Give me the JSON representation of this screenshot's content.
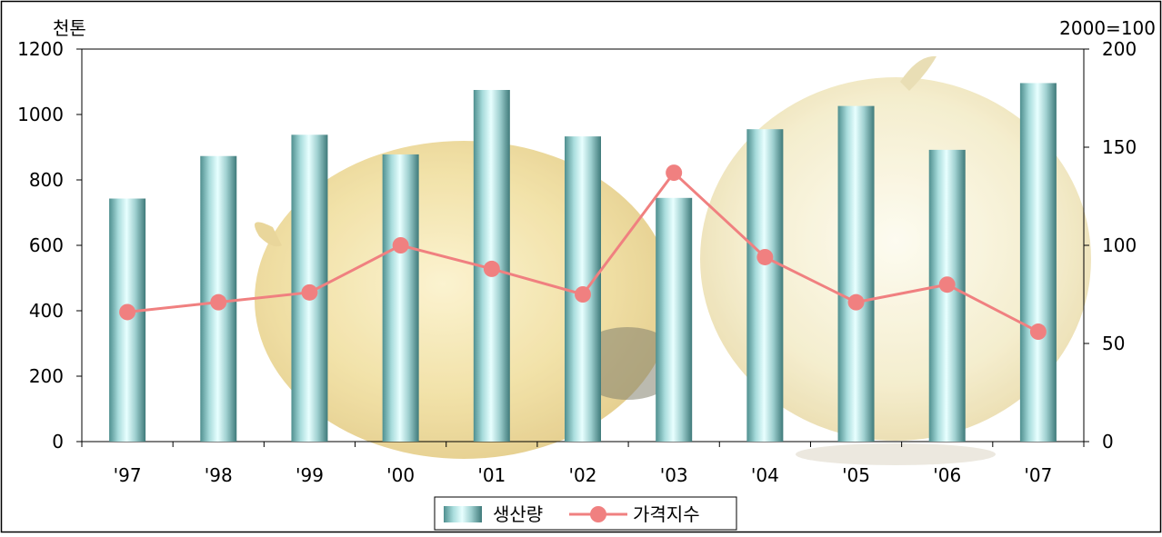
{
  "chart_data": {
    "type": "bar",
    "categories": [
      "'97",
      "'98",
      "'99",
      "'00",
      "'01",
      "'02",
      "'03",
      "'04",
      "'05",
      "'06",
      "'07"
    ],
    "series": [
      {
        "name": "생산량",
        "type": "bar",
        "axis": "left",
        "values": [
          743,
          873,
          938,
          878,
          1075,
          933,
          745,
          955,
          1026,
          892,
          1096
        ]
      },
      {
        "name": "가격지수",
        "type": "line",
        "axis": "right",
        "values": [
          66,
          71,
          76,
          100,
          88,
          75,
          137,
          94,
          71,
          80,
          56
        ]
      }
    ],
    "left_axis": {
      "unit_label": "천톤",
      "ylim": [
        0,
        1200
      ],
      "ticks": [
        0,
        200,
        400,
        600,
        800,
        1000,
        1200
      ]
    },
    "right_axis": {
      "unit_label": "2000=100",
      "ylim": [
        0,
        200
      ],
      "ticks": [
        0,
        50,
        100,
        150,
        200
      ]
    },
    "legend": {
      "position": "bottom-center"
    },
    "grid": false,
    "colors": {
      "bar": "#8fc8c8",
      "line": "#f08080"
    }
  }
}
